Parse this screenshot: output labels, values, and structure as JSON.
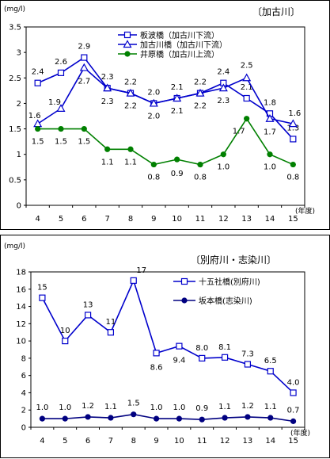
{
  "charts": [
    {
      "unit": "(mg/l)",
      "region": "〔加古川〕",
      "xunit": "(年度)"
    },
    {
      "unit": "(mg/l)",
      "region": "〔別府川・志染川〕",
      "xunit": "(年度)"
    }
  ],
  "chart_data": [
    {
      "type": "line",
      "title": "〔加古川〕",
      "ylabel": "(mg/l)",
      "xlabel": "(年度)",
      "ylim": [
        0,
        3.5
      ],
      "yticks": [
        "0",
        "0.5",
        "1",
        "1.5",
        "2",
        "2.5",
        "3",
        "3.5"
      ],
      "categories": [
        "4",
        "5",
        "6",
        "7",
        "8",
        "9",
        "10",
        "11",
        "12",
        "13",
        "14",
        "15"
      ],
      "legend_position": "top",
      "grid": false,
      "series": [
        {
          "name": "板波橋（加古川下流）",
          "marker": "square",
          "color": "#0000cc",
          "values": [
            2.4,
            2.6,
            2.9,
            2.3,
            2.2,
            2.0,
            2.1,
            2.2,
            2.4,
            2.1,
            1.8,
            1.3
          ],
          "labels": [
            "2.4",
            "2.6",
            "2.9",
            "2.3",
            "2.2",
            "2.0",
            "2.1",
            "2.2",
            "2.4",
            "2.1",
            "1.8",
            "1.3"
          ]
        },
        {
          "name": "加古川橋（加古川下流）",
          "marker": "triangle",
          "color": "#0000cc",
          "values": [
            1.6,
            1.9,
            2.7,
            2.3,
            2.2,
            2.0,
            2.1,
            2.2,
            2.3,
            2.5,
            1.7,
            1.6
          ],
          "labels": [
            "1.6",
            "1.9",
            "2.7",
            "2.3",
            "2.2",
            "2.0",
            "2.1",
            "2.2",
            "2.3",
            "2.5",
            "1.7",
            "1.6"
          ]
        },
        {
          "name": "井原橋（加古川上流）",
          "marker": "circle",
          "color": "#008000",
          "values": [
            1.5,
            1.5,
            1.5,
            1.1,
            1.1,
            0.8,
            0.9,
            0.8,
            1.0,
            1.7,
            1.0,
            0.8
          ],
          "labels": [
            "1.5",
            "1.5",
            "1.5",
            "1.1",
            "1.1",
            "0.8",
            "0.9",
            "0.8",
            "1.0",
            "1.7",
            "1.0",
            "0.8"
          ]
        }
      ]
    },
    {
      "type": "line",
      "title": "〔別府川・志染川〕",
      "ylabel": "(mg/l)",
      "xlabel": "(年度)",
      "ylim": [
        0,
        18
      ],
      "yticks": [
        "0",
        "2",
        "4",
        "6",
        "8",
        "10",
        "12",
        "14",
        "16",
        "18"
      ],
      "categories": [
        "4",
        "5",
        "6",
        "7",
        "8",
        "9",
        "10",
        "11",
        "12",
        "13",
        "14",
        "15"
      ],
      "legend_position": "right",
      "grid": false,
      "series": [
        {
          "name": "十五社橋(別府川)",
          "marker": "square",
          "color": "#0000cc",
          "values": [
            15,
            10,
            13,
            11,
            17,
            8.6,
            9.4,
            8.0,
            8.1,
            7.3,
            6.5,
            4.0
          ],
          "labels": [
            "15",
            "10",
            "13",
            "11",
            "17",
            "8.6",
            "9.4",
            "8.0",
            "8.1",
            "7.3",
            "6.5",
            "4.0"
          ]
        },
        {
          "name": "坂本橋(志染川)",
          "marker": "circle",
          "color": "#000080",
          "values": [
            1.0,
            1.0,
            1.2,
            1.1,
            1.5,
            1.0,
            1.0,
            0.9,
            1.1,
            1.2,
            1.1,
            0.7
          ],
          "labels": [
            "1.0",
            "1.0",
            "1.2",
            "1.1",
            "1.5",
            "1.0",
            "1.0",
            "0.9",
            "1.1",
            "1.2",
            "1.1",
            "0.7"
          ]
        }
      ]
    }
  ]
}
